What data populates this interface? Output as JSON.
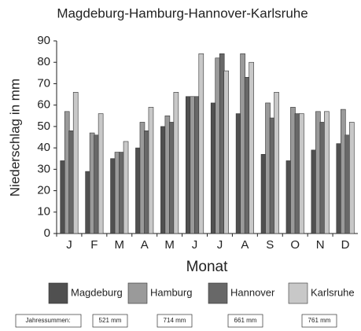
{
  "chart_data": {
    "type": "bar",
    "title": "Magdeburg-Hamburg-Hannover-Karlsruhe",
    "y_label": "Niederschlag in mm",
    "x_label": "Monat",
    "categories": [
      "J",
      "F",
      "M",
      "A",
      "M",
      "J",
      "J",
      "A",
      "S",
      "O",
      "N",
      "D"
    ],
    "series": [
      {
        "name": "Magdeburg",
        "color": "#505050",
        "values": [
          34,
          29,
          35,
          40,
          50,
          64,
          61,
          56,
          37,
          34,
          39,
          42
        ]
      },
      {
        "name": "Hamburg",
        "color": "#9a9a9a",
        "values": [
          57,
          47,
          38,
          52,
          55,
          64,
          82,
          84,
          61,
          59,
          57,
          58
        ]
      },
      {
        "name": "Hannover",
        "color": "#686868",
        "values": [
          48,
          46,
          38,
          48,
          52,
          64,
          84,
          73,
          54,
          56,
          52,
          46
        ]
      },
      {
        "name": "Karlsruhe",
        "color": "#c8c8c8",
        "values": [
          66,
          56,
          43,
          59,
          66,
          84,
          76,
          80,
          66,
          56,
          57,
          52
        ]
      }
    ],
    "ylim": [
      0,
      90
    ],
    "yticks": [
      0,
      10,
      20,
      30,
      40,
      50,
      60,
      70,
      80,
      90
    ],
    "grid": false,
    "annual_totals": {
      "label": "Jahressummen:",
      "values": [
        "521 mm",
        "714 mm",
        "661 mm",
        "761 mm"
      ]
    }
  }
}
